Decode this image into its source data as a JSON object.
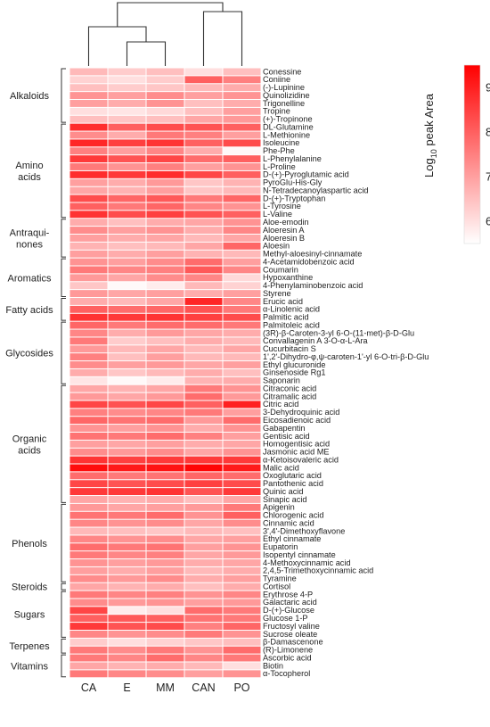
{
  "chart_data": {
    "type": "heatmap",
    "title": "",
    "xlabel": "",
    "ylabel": "",
    "columns": [
      "CA",
      "E",
      "MM",
      "CAN",
      "PO"
    ],
    "colorbar": {
      "label_prefix": "Log",
      "label_sub": "10",
      "label_suffix": " peak Area",
      "range": [
        5.5,
        9.5
      ],
      "ticks": [
        "6",
        "7",
        "8",
        "9"
      ],
      "colors": [
        "#ffffff",
        "#ff0000"
      ]
    },
    "dendrogram": {
      "order": [
        "CA",
        "E",
        "MM",
        "CAN",
        "PO"
      ],
      "merges": [
        [
          "E",
          "MM"
        ],
        [
          "CA",
          "E+MM"
        ],
        [
          "CAN",
          "PO"
        ],
        [
          "CA+E+MM",
          "CAN+PO"
        ]
      ]
    },
    "groups": [
      {
        "name_lines": [
          "Alkaloids"
        ],
        "rows": [
          {
            "label": "Conessine",
            "values": [
              6.6,
              6.3,
              6.5,
              6.0,
              6.5
            ]
          },
          {
            "label": "Coniine",
            "values": [
              6.2,
              6.0,
              6.3,
              8.0,
              7.5
            ]
          },
          {
            "label": "(-)-Lupinine",
            "values": [
              6.5,
              6.3,
              6.4,
              6.6,
              6.8
            ]
          },
          {
            "label": "Quinolizidine",
            "values": [
              7.2,
              7.0,
              7.3,
              7.0,
              7.2
            ]
          },
          {
            "label": "Trigonelline",
            "values": [
              7.0,
              6.8,
              7.2,
              6.5,
              6.8
            ]
          },
          {
            "label": "Tropine",
            "values": [
              6.0,
              5.9,
              6.1,
              6.5,
              7.0
            ]
          },
          {
            "label": "(+)-Tropinone",
            "values": [
              6.5,
              6.4,
              6.5,
              6.9,
              7.1
            ]
          }
        ]
      },
      {
        "name_lines": [
          "Amino",
          "acids"
        ],
        "rows": [
          {
            "label": "DL-Glutamine",
            "values": [
              8.8,
              8.0,
              8.3,
              8.2,
              8.0
            ]
          },
          {
            "label": "L-Methionine",
            "values": [
              7.3,
              6.8,
              7.6,
              7.5,
              7.0
            ]
          },
          {
            "label": "Isoleucine",
            "values": [
              8.9,
              8.5,
              8.7,
              8.0,
              8.3
            ]
          },
          {
            "label": "Phe-Phe",
            "values": [
              7.5,
              7.0,
              7.4,
              6.8,
              5.6
            ]
          },
          {
            "label": "L-Phenylalanine",
            "values": [
              8.6,
              8.2,
              8.4,
              7.8,
              8.0
            ]
          },
          {
            "label": "L-Proline",
            "values": [
              7.6,
              7.2,
              7.5,
              7.0,
              7.2
            ]
          },
          {
            "label": "D-(+)-Pyroglutamic acid",
            "values": [
              8.8,
              8.6,
              8.8,
              8.4,
              8.0
            ]
          },
          {
            "label": "PyroGlu-His-Gly",
            "values": [
              7.0,
              6.8,
              7.1,
              6.4,
              6.7
            ]
          },
          {
            "label": "N-Tetradecanoylaspartic acid",
            "values": [
              6.9,
              6.7,
              7.0,
              6.4,
              6.6
            ]
          },
          {
            "label": "D-(+)-Tryptophan",
            "values": [
              8.3,
              7.9,
              8.1,
              7.6,
              7.9
            ]
          },
          {
            "label": "L-Tyrosine",
            "values": [
              8.0,
              7.6,
              7.9,
              7.4,
              7.2
            ]
          },
          {
            "label": "L-Valine",
            "values": [
              8.7,
              8.3,
              8.5,
              8.2,
              8.0
            ]
          }
        ]
      },
      {
        "name_lines": [
          "Antraqui-",
          "nones"
        ],
        "rows": [
          {
            "label": "Aloe-emodin",
            "values": [
              6.8,
              6.5,
              6.8,
              6.9,
              7.2
            ]
          },
          {
            "label": "Aloeresin A",
            "values": [
              7.3,
              7.0,
              7.2,
              6.8,
              7.4
            ]
          },
          {
            "label": "Aloeresin B",
            "values": [
              7.0,
              6.8,
              6.9,
              6.6,
              6.9
            ]
          },
          {
            "label": "Aloesin",
            "values": [
              6.7,
              6.5,
              6.6,
              6.9,
              7.9
            ]
          },
          {
            "label": "Methyl-aloesinyl-cinnamate",
            "values": [
              7.0,
              6.8,
              7.0,
              6.7,
              6.6
            ]
          }
        ]
      },
      {
        "name_lines": [
          "Aromatics"
        ],
        "rows": [
          {
            "label": "4-Acetamidobenzoic acid",
            "values": [
              7.2,
              7.0,
              7.3,
              7.8,
              7.0
            ]
          },
          {
            "label": "Coumarin",
            "values": [
              7.6,
              7.4,
              7.5,
              8.1,
              7.4
            ]
          },
          {
            "label": "Hypoxanthine",
            "values": [
              7.1,
              6.9,
              7.3,
              7.4,
              6.1
            ]
          },
          {
            "label": "4-Phenylaminobenzoic acid",
            "values": [
              6.4,
              5.6,
              5.8,
              6.6,
              6.2
            ]
          },
          {
            "label": "Styrene",
            "values": [
              7.1,
              6.9,
              7.0,
              6.8,
              7.0
            ]
          }
        ]
      },
      {
        "name_lines": [
          "Fatty acids"
        ],
        "rows": [
          {
            "label": "Erucic acid",
            "values": [
              6.8,
              6.6,
              6.9,
              8.9,
              7.4
            ]
          },
          {
            "label": "α-Linolenic acid",
            "values": [
              8.0,
              7.8,
              7.9,
              8.2,
              7.6
            ]
          },
          {
            "label": "Palmitic acid",
            "values": [
              8.7,
              8.6,
              8.7,
              8.5,
              8.3
            ]
          }
        ]
      },
      {
        "name_lines": [
          "Glycosides"
        ],
        "rows": [
          {
            "label": "Palmitoleic acid",
            "values": [
              7.9,
              7.6,
              7.8,
              7.8,
              7.6
            ]
          },
          {
            "label": "(3R)-β-Caroten-3-yl 6-O-(11-met)-β-D-Glu",
            "values": [
              7.4,
              6.8,
              7.1,
              6.9,
              6.8
            ]
          },
          {
            "label": "Convallagenin A 3-O-α-L-Ara",
            "values": [
              7.6,
              6.3,
              6.5,
              6.8,
              6.6
            ]
          },
          {
            "label": "Cucurbitacin S",
            "values": [
              7.1,
              6.6,
              6.9,
              6.6,
              6.9
            ]
          },
          {
            "label": "1',2'-Dihydro-φ,ψ-caroten-1'-yl 6-O-tri-β-D-Glu",
            "values": [
              7.5,
              6.5,
              7.0,
              6.6,
              6.6
            ]
          },
          {
            "label": "Ethyl glucuronide",
            "values": [
              7.3,
              7.0,
              7.1,
              6.9,
              7.0
            ]
          },
          {
            "label": "Ginsenoside Rg1",
            "values": [
              6.8,
              6.4,
              6.6,
              6.8,
              6.5
            ]
          },
          {
            "label": "Saponarin",
            "values": [
              5.9,
              5.6,
              5.8,
              6.7,
              6.8
            ]
          }
        ]
      },
      {
        "name_lines": [
          "Organic",
          "acids"
        ],
        "rows": [
          {
            "label": "Citraconic acid",
            "values": [
              6.9,
              6.7,
              6.9,
              7.6,
              7.2
            ]
          },
          {
            "label": "Citramalic acid",
            "values": [
              7.1,
              6.9,
              7.1,
              7.8,
              7.1
            ]
          },
          {
            "label": "Citric acid",
            "values": [
              8.4,
              8.2,
              8.4,
              8.0,
              9.0
            ]
          },
          {
            "label": "3-Dehydroquinic acid",
            "values": [
              7.5,
              7.3,
              7.4,
              7.6,
              7.0
            ]
          },
          {
            "label": "Eicosadienoic acid",
            "values": [
              7.9,
              7.7,
              7.8,
              7.1,
              7.8
            ]
          },
          {
            "label": "Gabapentin",
            "values": [
              7.2,
              7.0,
              7.2,
              6.8,
              7.2
            ]
          },
          {
            "label": "Gentisic acid",
            "values": [
              7.7,
              7.6,
              7.8,
              7.5,
              7.0
            ]
          },
          {
            "label": "Homogentisic acid",
            "values": [
              7.0,
              6.9,
              7.0,
              6.8,
              6.9
            ]
          },
          {
            "label": "Jasmonic acid ME",
            "values": [
              7.3,
              7.1,
              7.3,
              6.9,
              7.2
            ]
          },
          {
            "label": "α-Ketoisovaleric acid",
            "values": [
              8.7,
              8.5,
              8.6,
              8.6,
              8.6
            ]
          },
          {
            "label": "Malic acid",
            "values": [
              9.3,
              9.1,
              9.2,
              9.4,
              9.1
            ]
          },
          {
            "label": "Oxoglutaric acid",
            "values": [
              7.8,
              7.6,
              7.7,
              7.9,
              7.8
            ]
          },
          {
            "label": "Pantothenic acid",
            "values": [
              8.4,
              8.2,
              8.3,
              8.5,
              8.3
            ]
          },
          {
            "label": "Quinic acid",
            "values": [
              8.6,
              8.6,
              8.7,
              8.2,
              8.6
            ]
          },
          {
            "label": "Sinapic acid",
            "values": [
              6.9,
              6.7,
              6.8,
              6.5,
              6.9
            ]
          }
        ]
      },
      {
        "name_lines": [
          "Phenols"
        ],
        "rows": [
          {
            "label": "Apigenin",
            "values": [
              7.1,
              6.9,
              7.0,
              7.1,
              7.6
            ]
          },
          {
            "label": "Chlorogenic acid",
            "values": [
              7.7,
              7.6,
              7.8,
              7.2,
              8.0
            ]
          },
          {
            "label": "Cinnamic acid",
            "values": [
              7.4,
              7.2,
              7.3,
              6.9,
              7.3
            ]
          },
          {
            "label": "3',4'-Dimethoxyflavone",
            "values": [
              6.6,
              6.5,
              6.4,
              6.6,
              6.5
            ]
          },
          {
            "label": "Ethyl cinnamate",
            "values": [
              7.4,
              7.2,
              7.3,
              6.9,
              7.0
            ]
          },
          {
            "label": "Eupatorin",
            "values": [
              7.8,
              7.6,
              7.7,
              7.0,
              7.2
            ]
          },
          {
            "label": "Isopentyl cinnamate",
            "values": [
              7.6,
              7.4,
              7.5,
              6.9,
              7.1
            ]
          },
          {
            "label": "4-Methoxycinnamic acid",
            "values": [
              7.2,
              7.0,
              7.1,
              6.8,
              6.9
            ]
          },
          {
            "label": "2,4,5-Trimethoxycinnamic acid",
            "values": [
              7.0,
              6.8,
              7.0,
              6.6,
              6.8
            ]
          },
          {
            "label": "Tyramine",
            "values": [
              7.3,
              7.1,
              7.3,
              6.8,
              7.0
            ]
          }
        ]
      },
      {
        "name_lines": [
          "Steroids"
        ],
        "rows": [
          {
            "label": "Cortisol",
            "values": [
              6.9,
              6.7,
              6.8,
              6.5,
              6.8
            ]
          }
        ]
      },
      {
        "name_lines": [
          "Sugars"
        ],
        "rows": [
          {
            "label": "Erythrose 4-P",
            "values": [
              7.6,
              7.4,
              7.5,
              7.2,
              7.4
            ]
          },
          {
            "label": "Galactaric acid",
            "values": [
              7.3,
              7.1,
              7.2,
              7.0,
              7.1
            ]
          },
          {
            "label": "D-(+)-Glucose",
            "values": [
              8.4,
              5.8,
              6.0,
              7.8,
              7.6
            ]
          },
          {
            "label": "Glucose 1-P",
            "values": [
              8.0,
              8.1,
              8.0,
              7.7,
              7.6
            ]
          },
          {
            "label": "Fructosyl valine",
            "values": [
              8.6,
              8.2,
              8.3,
              7.5,
              7.9
            ]
          },
          {
            "label": "Sucrose oleate",
            "values": [
              7.4,
              7.2,
              7.3,
              7.6,
              7.2
            ]
          }
        ]
      },
      {
        "name_lines": [
          "Terpenes"
        ],
        "rows": [
          {
            "label": "β-Damascenone",
            "values": [
              6.3,
              6.0,
              6.2,
              6.4,
              6.5
            ]
          },
          {
            "label": "(R)-Limonene",
            "values": [
              7.6,
              7.3,
              7.6,
              7.2,
              7.8
            ]
          }
        ]
      },
      {
        "name_lines": [
          "Vitamins"
        ],
        "rows": [
          {
            "label": "Ascorbic acid",
            "values": [
              7.6,
              7.4,
              7.8,
              7.4,
              7.6
            ]
          },
          {
            "label": "Biotin",
            "values": [
              6.9,
              6.7,
              6.8,
              6.6,
              6.0
            ]
          },
          {
            "label": "α-Tocopherol",
            "values": [
              7.6,
              7.4,
              7.3,
              7.0,
              7.2
            ]
          }
        ]
      }
    ]
  }
}
